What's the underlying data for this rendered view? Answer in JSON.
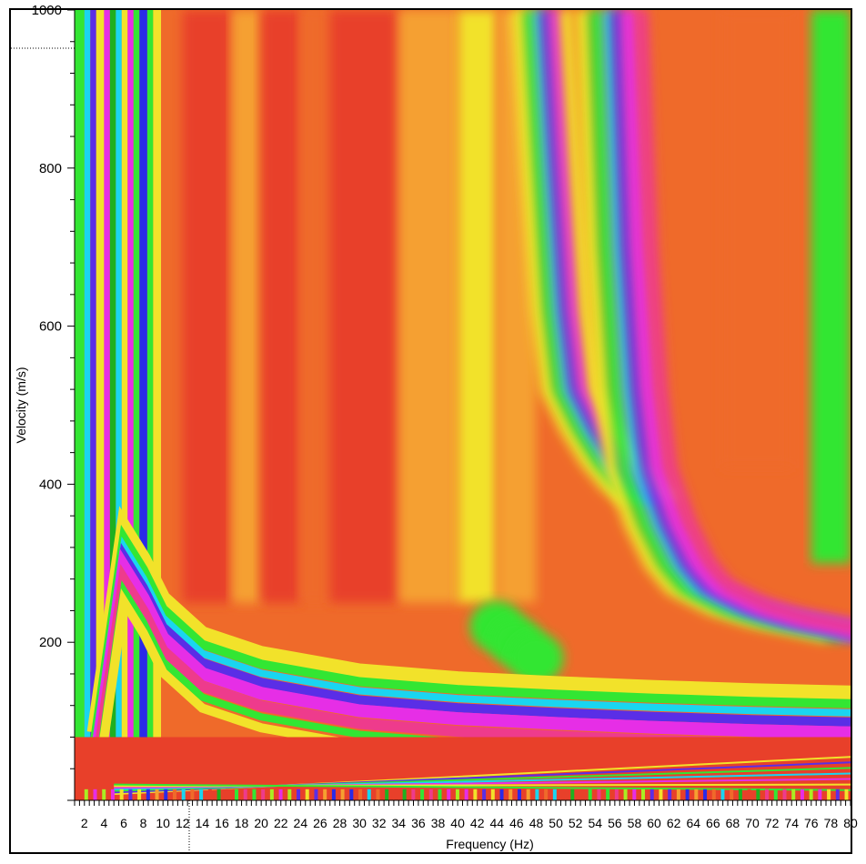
{
  "chart_data": {
    "type": "heatmap",
    "title": "",
    "xlabel": "Frequency (Hz)",
    "ylabel": "Velocity (m/s)",
    "xlim": [
      1,
      80
    ],
    "ylim": [
      0,
      1000
    ],
    "x_tick_labels": [
      "2",
      "4",
      "6",
      "8",
      "10",
      "12",
      "14",
      "16",
      "18",
      "20",
      "22",
      "24",
      "26",
      "28",
      "30",
      "32",
      "34",
      "36",
      "38",
      "40",
      "42",
      "44",
      "46",
      "48",
      "50",
      "52",
      "54",
      "56",
      "58",
      "60",
      "62",
      "64",
      "66",
      "68",
      "70",
      "72",
      "74",
      "76",
      "78",
      "80"
    ],
    "y_tick_labels": [
      "200",
      "400",
      "600",
      "800",
      "1000"
    ],
    "grid": false,
    "legend": "none",
    "colormap": [
      "#1fb01f",
      "#33e633",
      "#aaee22",
      "#f2e22a",
      "#f5a030",
      "#ef6a2a",
      "#e8402a",
      "#ee3b8c",
      "#e62ee6",
      "#5a2ee6",
      "#2a2ae8",
      "#1ad5f0"
    ],
    "dispersion_modes": [
      {
        "name": "",
        "points": [
          [
            3,
            40
          ],
          [
            6,
            300
          ],
          [
            8,
            260
          ],
          [
            10,
            210
          ],
          [
            14,
            165
          ],
          [
            20,
            140
          ],
          [
            30,
            118
          ],
          [
            40,
            108
          ],
          [
            50,
            102
          ],
          [
            60,
            97
          ],
          [
            70,
            93
          ],
          [
            80,
            90
          ]
        ]
      },
      {
        "name": "",
        "points": [
          [
            55,
            1000
          ],
          [
            56,
            700
          ],
          [
            57,
            520
          ],
          [
            58,
            420
          ],
          [
            60,
            350
          ],
          [
            62,
            300
          ],
          [
            64,
            270
          ],
          [
            68,
            245
          ],
          [
            72,
            230
          ],
          [
            76,
            220
          ],
          [
            80,
            210
          ]
        ]
      },
      {
        "name": "",
        "points": [
          [
            49,
            1000
          ],
          [
            50,
            800
          ],
          [
            51,
            620
          ],
          [
            52,
            520
          ],
          [
            54,
            470
          ],
          [
            56,
            430
          ],
          [
            58,
            400
          ],
          [
            60,
            380
          ]
        ]
      }
    ],
    "energy_regions": [
      {
        "name": "",
        "points": [
          [
            44,
            220
          ],
          [
            46,
            200
          ],
          [
            48,
            180
          ]
        ]
      }
    ]
  }
}
